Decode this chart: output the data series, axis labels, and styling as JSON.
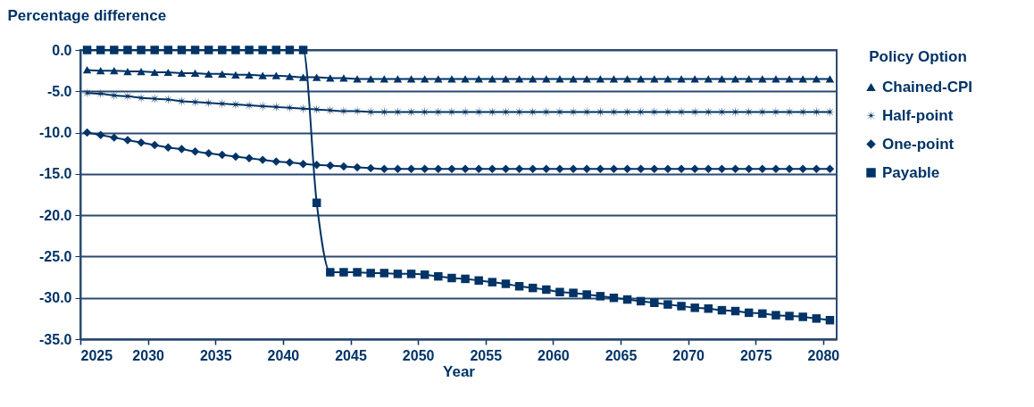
{
  "chart_data": {
    "type": "line",
    "ylabel": "Percentage difference",
    "xlabel": "Year",
    "legend_title": "Policy Option",
    "legend": "right",
    "grid": "y",
    "x": [
      2025.5,
      2026.5,
      2027.5,
      2028.5,
      2029.5,
      2030.5,
      2031.5,
      2032.5,
      2033.5,
      2034.5,
      2035.5,
      2036.5,
      2037.5,
      2038.5,
      2039.5,
      2040.5,
      2041.5,
      2042.5,
      2043.5,
      2044.5,
      2045.5,
      2046.5,
      2047.5,
      2048.5,
      2049.5,
      2050.5,
      2051.5,
      2052.5,
      2053.5,
      2054.5,
      2055.5,
      2056.5,
      2057.5,
      2058.5,
      2059.5,
      2060.5,
      2061.5,
      2062.5,
      2063.5,
      2064.5,
      2065.5,
      2066.5,
      2067.5,
      2068.5,
      2069.5,
      2070.5,
      2071.5,
      2072.5,
      2073.5,
      2074.5,
      2075.5,
      2076.5,
      2077.5,
      2078.5,
      2079.5,
      2080.5
    ],
    "xlim": [
      2025,
      2081
    ],
    "xticks": [
      2025,
      2030,
      2035,
      2040,
      2045,
      2050,
      2055,
      2060,
      2065,
      2070,
      2075,
      2080
    ],
    "ylim": [
      -35,
      0
    ],
    "yticks": [
      {
        "value": 0,
        "label": "0.0"
      },
      {
        "value": -5,
        "label": "-5.0"
      },
      {
        "value": -10,
        "label": "-10.0"
      },
      {
        "value": -15,
        "label": "-15.0"
      },
      {
        "value": -20,
        "label": "-20.0"
      },
      {
        "value": -25,
        "label": "-25.0"
      },
      {
        "value": -30,
        "label": "-30.0"
      },
      {
        "value": -35,
        "label": "-35.0"
      }
    ],
    "series": [
      {
        "name": "Chained-CPI",
        "color": "#003366",
        "marker": "triangle",
        "values": [
          -2.4,
          -2.5,
          -2.5,
          -2.6,
          -2.6,
          -2.7,
          -2.7,
          -2.8,
          -2.8,
          -2.9,
          -2.9,
          -3.0,
          -3.0,
          -3.1,
          -3.1,
          -3.2,
          -3.3,
          -3.3,
          -3.4,
          -3.4,
          -3.5,
          -3.5,
          -3.5,
          -3.5,
          -3.5,
          -3.5,
          -3.5,
          -3.5,
          -3.5,
          -3.5,
          -3.5,
          -3.5,
          -3.5,
          -3.5,
          -3.5,
          -3.5,
          -3.5,
          -3.5,
          -3.5,
          -3.5,
          -3.5,
          -3.5,
          -3.5,
          -3.5,
          -3.5,
          -3.5,
          -3.5,
          -3.5,
          -3.5,
          -3.5,
          -3.5,
          -3.5,
          -3.5,
          -3.5,
          -3.5,
          -3.5
        ]
      },
      {
        "name": "Half-point",
        "color": "#003366",
        "marker": "star",
        "values": [
          -5.2,
          -5.3,
          -5.5,
          -5.6,
          -5.8,
          -5.9,
          -6.0,
          -6.2,
          -6.3,
          -6.4,
          -6.5,
          -6.6,
          -6.7,
          -6.8,
          -6.9,
          -7.0,
          -7.1,
          -7.2,
          -7.3,
          -7.4,
          -7.4,
          -7.5,
          -7.5,
          -7.5,
          -7.5,
          -7.5,
          -7.5,
          -7.5,
          -7.5,
          -7.5,
          -7.5,
          -7.5,
          -7.5,
          -7.5,
          -7.5,
          -7.5,
          -7.5,
          -7.5,
          -7.5,
          -7.5,
          -7.5,
          -7.5,
          -7.5,
          -7.5,
          -7.5,
          -7.5,
          -7.5,
          -7.5,
          -7.5,
          -7.5,
          -7.5,
          -7.5,
          -7.5,
          -7.5,
          -7.5,
          -7.5
        ]
      },
      {
        "name": "One-point",
        "color": "#003366",
        "marker": "diamond",
        "values": [
          -10.0,
          -10.3,
          -10.6,
          -10.9,
          -11.2,
          -11.5,
          -11.8,
          -12.0,
          -12.3,
          -12.5,
          -12.7,
          -12.9,
          -13.1,
          -13.3,
          -13.5,
          -13.6,
          -13.8,
          -13.9,
          -14.0,
          -14.1,
          -14.2,
          -14.3,
          -14.4,
          -14.4,
          -14.4,
          -14.4,
          -14.4,
          -14.4,
          -14.4,
          -14.4,
          -14.4,
          -14.4,
          -14.4,
          -14.4,
          -14.4,
          -14.4,
          -14.4,
          -14.4,
          -14.4,
          -14.4,
          -14.4,
          -14.4,
          -14.4,
          -14.4,
          -14.4,
          -14.4,
          -14.4,
          -14.4,
          -14.4,
          -14.4,
          -14.4,
          -14.4,
          -14.4,
          -14.4,
          -14.4,
          -14.4
        ]
      },
      {
        "name": "Payable",
        "color": "#003366",
        "marker": "square",
        "values": [
          0,
          0,
          0,
          0,
          0,
          0,
          0,
          0,
          0,
          0,
          0,
          0,
          0,
          0,
          0,
          0,
          0,
          -18.5,
          -26.9,
          -26.9,
          -26.9,
          -27.0,
          -27.0,
          -27.1,
          -27.1,
          -27.2,
          -27.4,
          -27.6,
          -27.7,
          -27.9,
          -28.1,
          -28.3,
          -28.6,
          -28.8,
          -29.0,
          -29.3,
          -29.4,
          -29.6,
          -29.8,
          -30.0,
          -30.2,
          -30.4,
          -30.6,
          -30.8,
          -31.0,
          -31.2,
          -31.3,
          -31.5,
          -31.6,
          -31.8,
          -31.9,
          -32.1,
          -32.2,
          -32.3,
          -32.5,
          -32.7
        ]
      }
    ]
  }
}
